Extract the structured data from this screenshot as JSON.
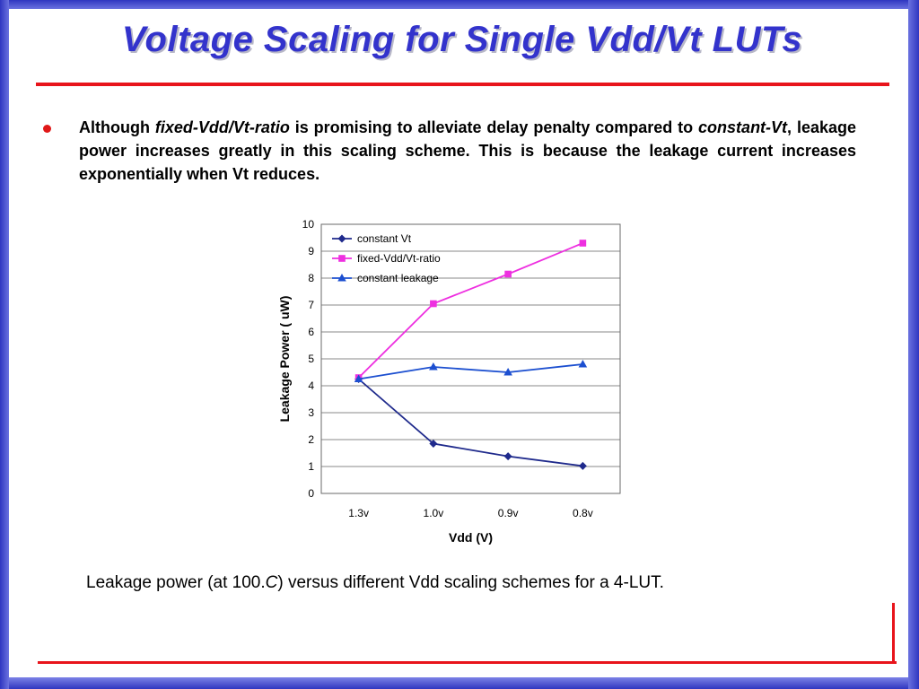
{
  "slide": {
    "title": "Voltage Scaling for Single Vdd/Vt LUTs",
    "bullet": {
      "t1": "Although ",
      "t2": "fixed-Vdd/Vt-ratio",
      "t3": " is promising to alleviate delay penalty compared to ",
      "t4": "constant-Vt",
      "t5": ", leakage power increases greatly in this scaling scheme. This is because the leakage current increases exponentially when Vt reduces."
    },
    "caption": {
      "pre": "Leakage power (at 100.",
      "italic": "C",
      "post": ") versus different Vdd scaling schemes for a 4-LUT."
    }
  },
  "colors": {
    "title": "#3333cc",
    "accent_rule": "#e8141b",
    "frame": "#2f36c0"
  },
  "chart_data": {
    "type": "line",
    "categories": [
      "1.3v",
      "1.0v",
      "0.9v",
      "0.8v"
    ],
    "series": [
      {
        "name": "constant Vt",
        "values": [
          4.25,
          1.85,
          1.38,
          1.02
        ],
        "color": "#1f2a8c",
        "marker": "diamond"
      },
      {
        "name": "fixed-Vdd/Vt-ratio",
        "values": [
          4.3,
          7.05,
          8.15,
          9.3
        ],
        "color": "#ee2fe0",
        "marker": "square"
      },
      {
        "name": "constant leakage",
        "values": [
          4.25,
          4.7,
          4.5,
          4.8
        ],
        "color": "#1c4fd0",
        "marker": "triangle"
      }
    ],
    "xlabel": "Vdd (V)",
    "ylabel": "Leakage Power ( uW)",
    "ylim": [
      0,
      10
    ],
    "yticks": [
      "0",
      "1",
      "2",
      "3",
      "4",
      "5",
      "6",
      "7",
      "8",
      "9",
      "10"
    ],
    "grid": true,
    "legend_position": "top-left"
  }
}
